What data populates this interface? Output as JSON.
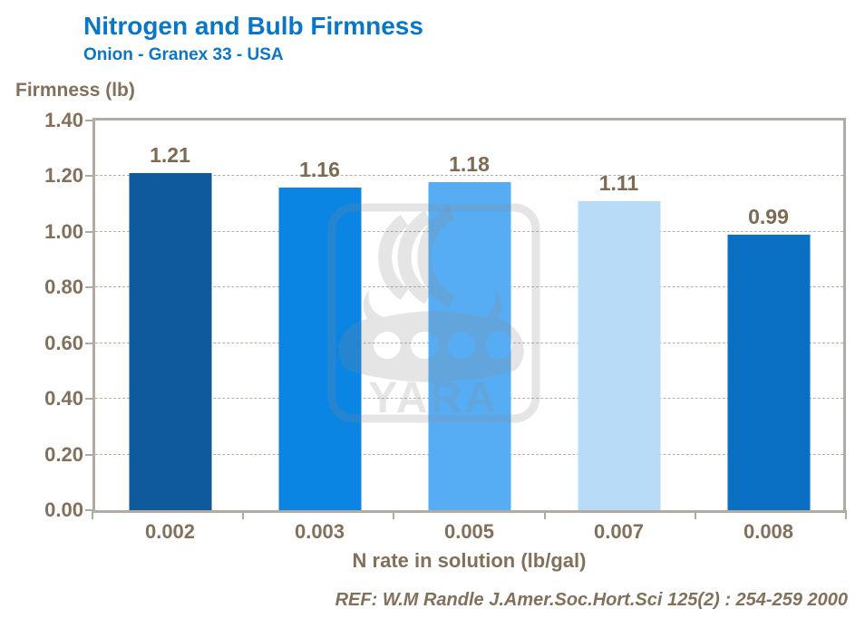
{
  "header": {
    "title": "Nitrogen and Bulb Firmness",
    "subtitle": "Onion - Granex 33 - USA"
  },
  "footer": {
    "reference": "REF: W.M Randle  J.Amer.Soc.Hort.Sci 125(2) : 254-259 2000"
  },
  "watermark": {
    "icon": "yara-viking-ship-logo",
    "text": "YARA"
  },
  "colors": {
    "title_blue": "#0c76c6",
    "label_brown": "#82705b",
    "frame_gray": "#b3aba1",
    "gridline": "#bdae9d"
  },
  "chart_data": {
    "type": "bar",
    "title": "Nitrogen and Bulb Firmness",
    "subtitle": "Onion - Granex 33 - USA",
    "categories": [
      "0.002",
      "0.003",
      "0.005",
      "0.007",
      "0.008"
    ],
    "values": [
      1.21,
      1.16,
      1.18,
      1.11,
      0.99
    ],
    "value_labels": [
      "1.21",
      "1.16",
      "1.18",
      "1.11",
      "0.99"
    ],
    "bar_colors": [
      "#0e5a9c",
      "#0a85e4",
      "#57adf4",
      "#b8dcf8",
      "#0a70c4"
    ],
    "xlabel": "N rate in solution (lb/gal)",
    "ylabel": "Firmness (lb)",
    "ylim": [
      0,
      1.4
    ],
    "yticks": [
      0.0,
      0.2,
      0.4,
      0.6,
      0.8,
      1.0,
      1.2,
      1.4
    ],
    "ytick_labels": [
      "0.00",
      "0.20",
      "0.40",
      "0.60",
      "0.80",
      "1.00",
      "1.20",
      "1.40"
    ],
    "grid": "horizontal-dashed",
    "legend": "none"
  }
}
